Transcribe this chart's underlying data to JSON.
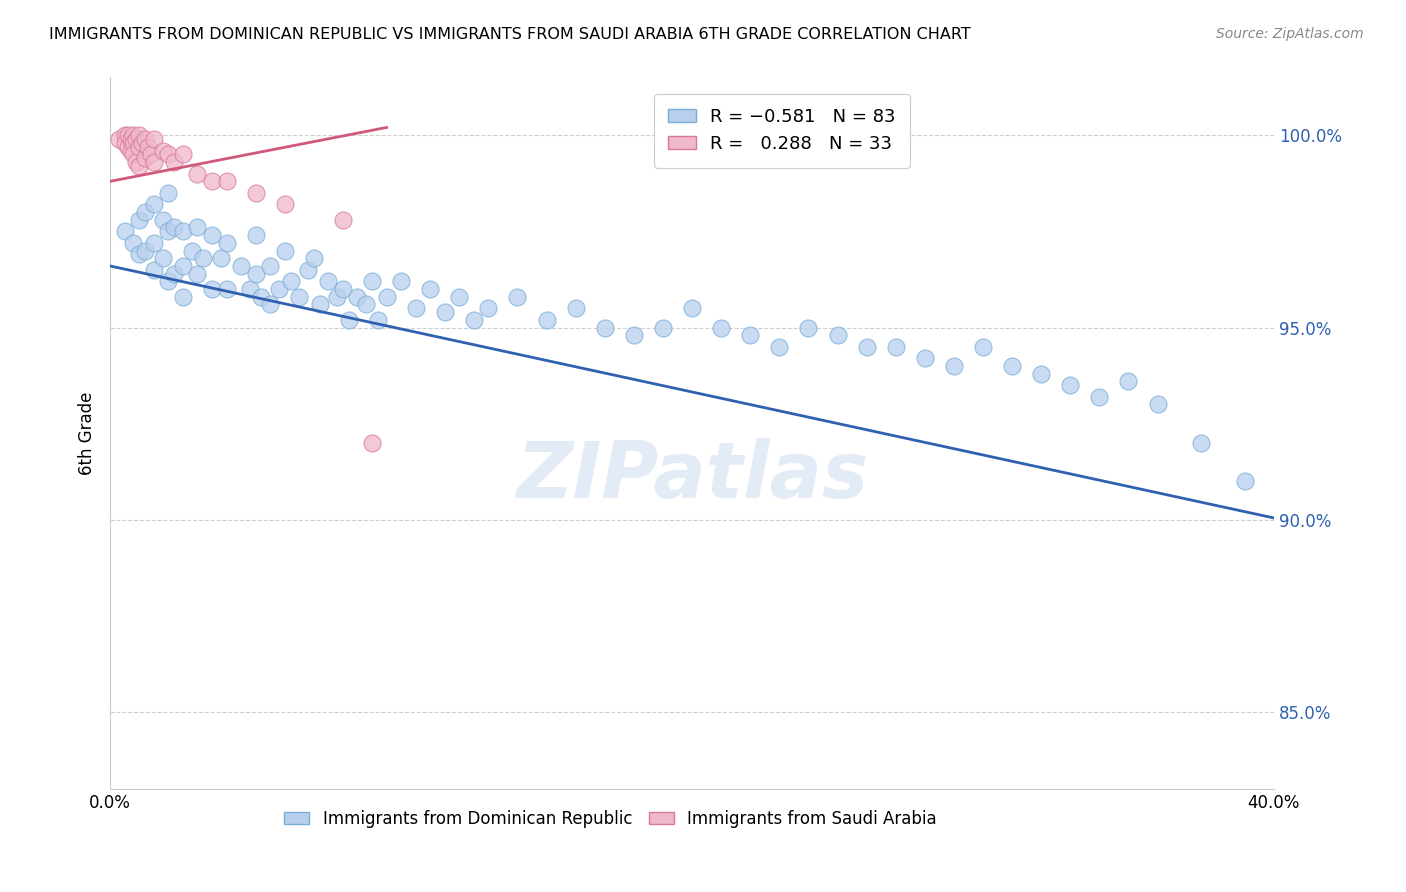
{
  "title": "IMMIGRANTS FROM DOMINICAN REPUBLIC VS IMMIGRANTS FROM SAUDI ARABIA 6TH GRADE CORRELATION CHART",
  "source_text": "Source: ZipAtlas.com",
  "ylabel": "6th Grade",
  "xlim": [
    0.0,
    0.4
  ],
  "ylim": [
    0.83,
    1.015
  ],
  "yticks": [
    0.85,
    0.9,
    0.95,
    1.0
  ],
  "ytick_labels": [
    "85.0%",
    "90.0%",
    "95.0%",
    "100.0%"
  ],
  "xticks": [
    0.0,
    0.05,
    0.1,
    0.15,
    0.2,
    0.25,
    0.3,
    0.35,
    0.4
  ],
  "xtick_labels": [
    "0.0%",
    "",
    "",
    "",
    "",
    "",
    "",
    "",
    "40.0%"
  ],
  "blue_color": "#b8d0ee",
  "pink_color": "#f0b8cc",
  "blue_edge_color": "#7aadd4",
  "pink_edge_color": "#d87898",
  "blue_line_color": "#3060b0",
  "pink_line_color": "#d05878",
  "watermark": "ZIPatlas",
  "blue_scatter_x": [
    0.005,
    0.008,
    0.01,
    0.01,
    0.012,
    0.012,
    0.015,
    0.015,
    0.015,
    0.018,
    0.018,
    0.02,
    0.02,
    0.02,
    0.022,
    0.022,
    0.025,
    0.025,
    0.025,
    0.028,
    0.03,
    0.03,
    0.032,
    0.035,
    0.035,
    0.038,
    0.04,
    0.04,
    0.045,
    0.048,
    0.05,
    0.05,
    0.052,
    0.055,
    0.055,
    0.058,
    0.06,
    0.062,
    0.065,
    0.068,
    0.07,
    0.072,
    0.075,
    0.078,
    0.08,
    0.082,
    0.085,
    0.088,
    0.09,
    0.092,
    0.095,
    0.1,
    0.105,
    0.11,
    0.115,
    0.12,
    0.125,
    0.13,
    0.14,
    0.15,
    0.16,
    0.17,
    0.18,
    0.19,
    0.2,
    0.21,
    0.22,
    0.23,
    0.24,
    0.25,
    0.26,
    0.27,
    0.28,
    0.29,
    0.3,
    0.31,
    0.32,
    0.33,
    0.34,
    0.35,
    0.36,
    0.375,
    0.39
  ],
  "blue_scatter_y": [
    0.975,
    0.972,
    0.978,
    0.969,
    0.98,
    0.97,
    0.982,
    0.972,
    0.965,
    0.978,
    0.968,
    0.985,
    0.975,
    0.962,
    0.976,
    0.964,
    0.975,
    0.966,
    0.958,
    0.97,
    0.976,
    0.964,
    0.968,
    0.974,
    0.96,
    0.968,
    0.972,
    0.96,
    0.966,
    0.96,
    0.974,
    0.964,
    0.958,
    0.966,
    0.956,
    0.96,
    0.97,
    0.962,
    0.958,
    0.965,
    0.968,
    0.956,
    0.962,
    0.958,
    0.96,
    0.952,
    0.958,
    0.956,
    0.962,
    0.952,
    0.958,
    0.962,
    0.955,
    0.96,
    0.954,
    0.958,
    0.952,
    0.955,
    0.958,
    0.952,
    0.955,
    0.95,
    0.948,
    0.95,
    0.955,
    0.95,
    0.948,
    0.945,
    0.95,
    0.948,
    0.945,
    0.945,
    0.942,
    0.94,
    0.945,
    0.94,
    0.938,
    0.935,
    0.932,
    0.936,
    0.93,
    0.92,
    0.91
  ],
  "pink_scatter_x": [
    0.003,
    0.005,
    0.005,
    0.006,
    0.006,
    0.007,
    0.007,
    0.008,
    0.008,
    0.008,
    0.009,
    0.009,
    0.01,
    0.01,
    0.01,
    0.011,
    0.012,
    0.012,
    0.013,
    0.014,
    0.015,
    0.015,
    0.018,
    0.02,
    0.022,
    0.025,
    0.03,
    0.035,
    0.04,
    0.05,
    0.06,
    0.08,
    0.09
  ],
  "pink_scatter_y": [
    0.999,
    1.0,
    0.998,
    1.0,
    0.997,
    0.999,
    0.996,
    1.0,
    0.998,
    0.995,
    0.999,
    0.993,
    1.0,
    0.997,
    0.992,
    0.998,
    0.999,
    0.994,
    0.997,
    0.995,
    0.999,
    0.993,
    0.996,
    0.995,
    0.993,
    0.995,
    0.99,
    0.988,
    0.988,
    0.985,
    0.982,
    0.978,
    0.92
  ],
  "blue_line_x": [
    0.0,
    0.4
  ],
  "blue_line_y": [
    0.966,
    0.9005
  ],
  "pink_line_x": [
    0.0,
    0.095
  ],
  "pink_line_y": [
    0.988,
    1.002
  ]
}
